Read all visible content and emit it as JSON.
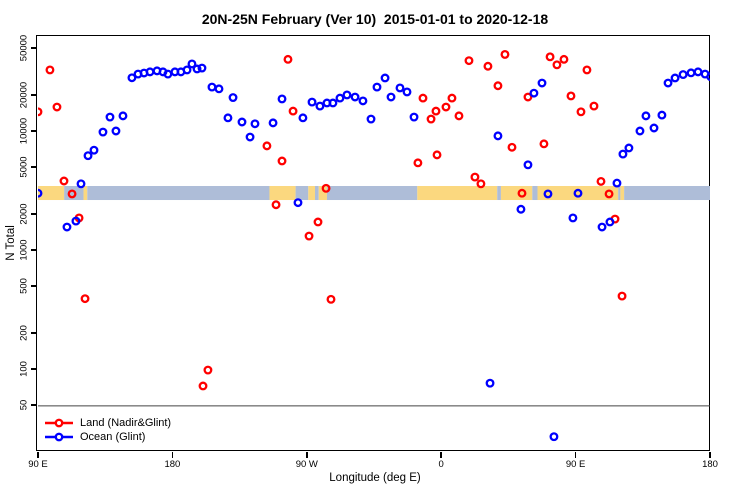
{
  "chart_data": {
    "type": "scatter",
    "title": "20N-25N February (Ver 10)  2015-01-01 to 2020-12-18",
    "xlabel": "Longitude (deg E)",
    "ylabel": "N Total",
    "x_axis": {
      "domain": [
        90,
        540
      ],
      "note": "longitude axis wraps eastward: 90E to 180 to 90W to 0 to 90E to 180",
      "ticks": [
        {
          "pos": 90,
          "label": "90 E"
        },
        {
          "pos": 180,
          "label": "180"
        },
        {
          "pos": 270,
          "label": "90 W"
        },
        {
          "pos": 360,
          "label": "0"
        },
        {
          "pos": 450,
          "label": "90 E"
        },
        {
          "pos": 540,
          "label": "180"
        }
      ]
    },
    "y_axis": {
      "scale": "log",
      "domain": [
        20.5,
        61600
      ],
      "ticks": [
        50,
        100,
        200,
        500,
        1000,
        2000,
        5000,
        10000,
        20000,
        50000
      ]
    },
    "threshold_line": {
      "value": 49,
      "color": "#444444"
    },
    "map_band": {
      "top_value": 3450,
      "bottom_value": 2630,
      "land_color": "#FBD87F",
      "ocean_color": "#AEBDD8",
      "segments": [
        {
          "from": 90,
          "to": 107.5,
          "type": "land"
        },
        {
          "from": 107.5,
          "to": 120.5,
          "type": "ocean"
        },
        {
          "from": 120.5,
          "to": 123,
          "type": "land"
        },
        {
          "from": 123,
          "to": 245,
          "type": "ocean"
        },
        {
          "from": 245,
          "to": 262.5,
          "type": "land"
        },
        {
          "from": 262.5,
          "to": 271,
          "type": "ocean"
        },
        {
          "from": 271,
          "to": 275.5,
          "type": "land"
        },
        {
          "from": 275.5,
          "to": 278,
          "type": "ocean"
        },
        {
          "from": 278,
          "to": 283.5,
          "type": "land"
        },
        {
          "from": 283.5,
          "to": 344,
          "type": "ocean"
        },
        {
          "from": 344,
          "to": 397.5,
          "type": "land"
        },
        {
          "from": 397.5,
          "to": 400,
          "type": "ocean"
        },
        {
          "from": 400,
          "to": 421,
          "type": "land"
        },
        {
          "from": 421,
          "to": 424.5,
          "type": "ocean"
        },
        {
          "from": 424.5,
          "to": 478.5,
          "type": "land"
        },
        {
          "from": 478.5,
          "to": 480,
          "type": "ocean"
        },
        {
          "from": 480,
          "to": 482.5,
          "type": "land"
        },
        {
          "from": 482.5,
          "to": 540,
          "type": "ocean"
        }
      ]
    },
    "series": [
      {
        "name": "Land (Nadir&Glint)",
        "color": "#FF0000",
        "marker": "open-circle",
        "points": [
          [
            98.0,
            32600
          ],
          [
            90,
            14500
          ],
          [
            102.7,
            15900
          ],
          [
            107.4,
            3800
          ],
          [
            112.8,
            2960
          ],
          [
            117.5,
            1860
          ],
          [
            121.5,
            390
          ],
          [
            200.5,
            72
          ],
          [
            203.8,
            98
          ],
          [
            257.4,
            40000
          ],
          [
            260.8,
            14700
          ],
          [
            243.3,
            7500
          ],
          [
            253.4,
            5600
          ],
          [
            249.4,
            2400
          ],
          [
            277.5,
            1720
          ],
          [
            271.5,
            1310
          ],
          [
            282.9,
            3300
          ],
          [
            286.2,
            385
          ],
          [
            347.8,
            18900
          ],
          [
            363.2,
            15900
          ],
          [
            367.2,
            18900
          ],
          [
            353.2,
            12600
          ],
          [
            356.5,
            14700
          ],
          [
            371.9,
            13400
          ],
          [
            344.4,
            5400
          ],
          [
            357.2,
            6300
          ],
          [
            382.6,
            4100
          ],
          [
            386.6,
            3600
          ],
          [
            378.6,
            39000
          ],
          [
            402.7,
            44000
          ],
          [
            391.3,
            35000
          ],
          [
            432.9,
            42000
          ],
          [
            442.2,
            40000
          ],
          [
            437.5,
            36000
          ],
          [
            457.6,
            32600
          ],
          [
            398.0,
            24000
          ],
          [
            418.1,
            19300
          ],
          [
            446.9,
            19700
          ],
          [
            453.6,
            14500
          ],
          [
            462.3,
            16200
          ],
          [
            407.4,
            7300
          ],
          [
            428.8,
            7800
          ],
          [
            467.0,
            3770
          ],
          [
            414.1,
            3000
          ],
          [
            472.4,
            2960
          ],
          [
            476.4,
            1820
          ],
          [
            481.1,
            410
          ]
        ]
      },
      {
        "name": "Ocean (Glint)",
        "color": "#0000FF",
        "marker": "open-circle",
        "points": [
          [
            90,
            3000
          ],
          [
            109.4,
            1560
          ],
          [
            115.4,
            1750
          ],
          [
            118.8,
            3600
          ],
          [
            123.5,
            6200
          ],
          [
            127.5,
            6900
          ],
          [
            133.5,
            9800
          ],
          [
            138.2,
            13100
          ],
          [
            142.2,
            10000
          ],
          [
            146.9,
            13400
          ],
          [
            152.9,
            28000
          ],
          [
            157.0,
            30100
          ],
          [
            161.0,
            30700
          ],
          [
            165.0,
            31400
          ],
          [
            169.7,
            32000
          ],
          [
            173.7,
            31400
          ],
          [
            177.0,
            30100
          ],
          [
            181.7,
            31400
          ],
          [
            185.7,
            31400
          ],
          [
            189.8,
            32600
          ],
          [
            193.1,
            36600
          ],
          [
            196.5,
            33200
          ],
          [
            199.8,
            33800
          ],
          [
            206.5,
            23400
          ],
          [
            211.2,
            22600
          ],
          [
            220.6,
            19100
          ],
          [
            217.2,
            12900
          ],
          [
            226.6,
            11900
          ],
          [
            235.3,
            11500
          ],
          [
            232.0,
            8900
          ],
          [
            247.4,
            11700
          ],
          [
            253.4,
            18600
          ],
          [
            264.1,
            2500
          ],
          [
            267.4,
            12900
          ],
          [
            273.5,
            17500
          ],
          [
            278.8,
            16200
          ],
          [
            283.5,
            17200
          ],
          [
            287.5,
            17200
          ],
          [
            292.2,
            18900
          ],
          [
            296.9,
            20100
          ],
          [
            302.3,
            19300
          ],
          [
            307.6,
            17900
          ],
          [
            313.0,
            12600
          ],
          [
            317.0,
            23400
          ],
          [
            322.4,
            27900
          ],
          [
            326.4,
            19300
          ],
          [
            332.4,
            23000
          ],
          [
            337.1,
            21300
          ],
          [
            341.8,
            13100
          ],
          [
            392.7,
            76
          ],
          [
            398.0,
            9100
          ],
          [
            413.4,
            2200
          ],
          [
            418.1,
            5200
          ],
          [
            422.1,
            20800
          ],
          [
            427.5,
            25300
          ],
          [
            431.5,
            2960
          ],
          [
            435.5,
            27
          ],
          [
            448.2,
            1860
          ],
          [
            451.6,
            3000
          ],
          [
            467.7,
            1560
          ],
          [
            473.0,
            1720
          ],
          [
            477.7,
            3650
          ],
          [
            481.7,
            6400
          ],
          [
            485.7,
            7200
          ],
          [
            493.1,
            10000
          ],
          [
            497.1,
            13400
          ],
          [
            502.5,
            10600
          ],
          [
            507.8,
            13600
          ],
          [
            511.9,
            25300
          ],
          [
            516.6,
            27900
          ],
          [
            522.0,
            29800
          ],
          [
            527.3,
            30800
          ],
          [
            532.0,
            31400
          ],
          [
            536.7,
            30100
          ],
          [
            540.5,
            28600
          ]
        ]
      }
    ]
  }
}
